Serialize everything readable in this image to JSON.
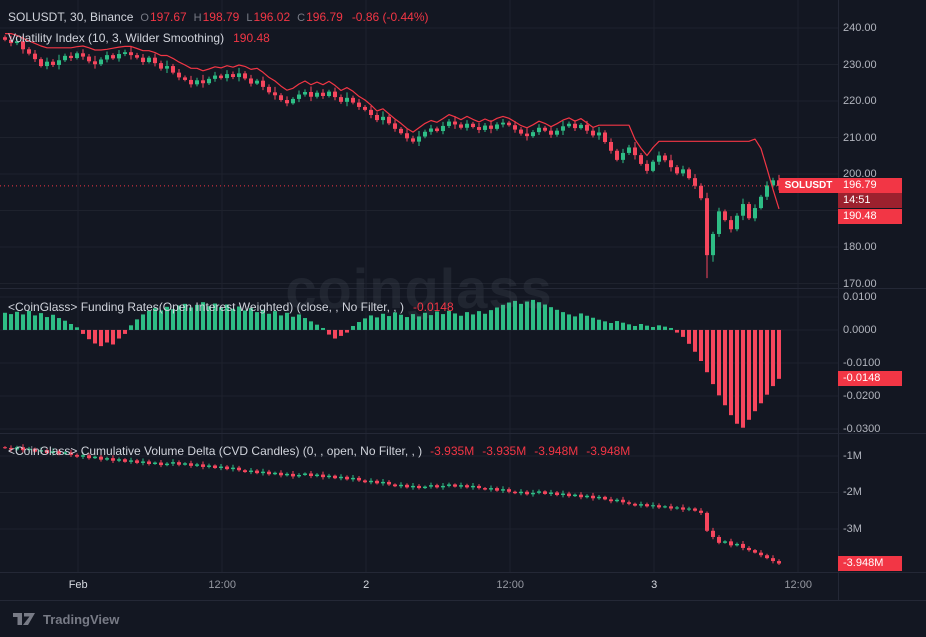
{
  "window": {
    "watermark": "coinglass"
  },
  "colors": {
    "bg": "#131722",
    "grid": "#1e222d",
    "up": "#2ebd85",
    "down": "#f6465d",
    "accent_red": "#f23645",
    "scale_text": "#b2b5be",
    "legend_text": "#d1d4dc",
    "muted": "#787b86"
  },
  "legend": {
    "p1_title": "SOLUSDT, 30, Binance",
    "p1_ohlc": [
      {
        "k": "O",
        "v": "197.67"
      },
      {
        "k": "H",
        "v": "198.79"
      },
      {
        "k": "L",
        "v": "196.02"
      },
      {
        "k": "C",
        "v": "196.79"
      }
    ],
    "p1_change": "-0.86 (-0.44%)",
    "p1_ind_name": "Volatility Index (10, 3, Wilder Smoothing)",
    "p1_ind_value": "190.48",
    "p2_name": "<CoinGlass> Funding Rates(Open Interest Weighted) (close, , No Filter, , )",
    "p2_value": "-0.0148",
    "p3_name": "<CoinGlass> Cumulative Volume Delta (CVD Candles) (0, , open, No Filter, , )",
    "p3_values": [
      "-3.935M",
      "-3.935M",
      "-3.948M",
      "-3.948M"
    ]
  },
  "badges": {
    "symbol": "SOLUSDT",
    "price": "196.79",
    "countdown": "14:51",
    "volatility": "190.48",
    "funding": "-0.0148",
    "cvd": "-3.948M"
  },
  "toolbar": {
    "brand": "TradingView"
  },
  "time_axis": {
    "ticks": [
      {
        "label": "Feb",
        "index": 12.2,
        "strong": true
      },
      {
        "label": "12:00",
        "index": 36.2
      },
      {
        "label": "2",
        "index": 60.2,
        "strong": true
      },
      {
        "label": "12:00",
        "index": 84.2
      },
      {
        "label": "3",
        "index": 108.2,
        "strong": true
      },
      {
        "label": "12:00",
        "index": 132.2
      }
    ]
  },
  "chart_data": [
    {
      "type": "candlestick",
      "title": "SOLUSDT, 30, Binance",
      "symbol": "SOLUSDT",
      "interval": "30",
      "exchange": "Binance",
      "ohlc_display": {
        "open": "197.67",
        "high": "198.79",
        "low": "196.02",
        "close": "196.79",
        "change": "-0.86 (-0.44%)"
      },
      "last_price": 196.79,
      "countdown": "14:51",
      "ylim": [
        168.8,
        247.7
      ],
      "y_ticks": [
        {
          "v": 240,
          "label": "240.00"
        },
        {
          "v": 230,
          "label": "230.00"
        },
        {
          "v": 220,
          "label": "220.00"
        },
        {
          "v": 210,
          "label": "210.00"
        },
        {
          "v": 200,
          "label": "200.00"
        },
        {
          "v": 190,
          "label": ""
        },
        {
          "v": 180,
          "label": "180.00"
        },
        {
          "v": 170,
          "label": "170.00"
        }
      ],
      "first_open": 237.5,
      "closes": [
        236.8,
        235.9,
        236.4,
        234.2,
        233.0,
        231.5,
        229.6,
        230.8,
        229.9,
        231.2,
        232.4,
        231.8,
        233.1,
        232.2,
        230.9,
        230.1,
        231.4,
        232.6,
        231.7,
        232.9,
        233.4,
        232.6,
        231.9,
        230.7,
        231.9,
        230.4,
        228.9,
        229.6,
        227.8,
        226.5,
        225.8,
        224.6,
        225.7,
        224.9,
        226.1,
        227.0,
        226.3,
        227.4,
        226.6,
        227.6,
        226.2,
        224.8,
        225.6,
        223.9,
        222.4,
        221.6,
        220.3,
        219.4,
        220.6,
        221.8,
        222.5,
        221.2,
        222.3,
        221.4,
        222.6,
        221.1,
        219.8,
        220.9,
        219.6,
        218.4,
        217.6,
        216.2,
        214.8,
        215.7,
        213.9,
        212.4,
        211.2,
        209.8,
        208.9,
        210.3,
        211.6,
        212.5,
        211.8,
        213.2,
        214.4,
        213.6,
        212.7,
        213.8,
        212.9,
        212.1,
        213.3,
        212.4,
        213.6,
        214.1,
        213.4,
        212.2,
        211.1,
        210.4,
        211.5,
        212.7,
        211.9,
        210.8,
        211.9,
        213.1,
        213.8,
        212.6,
        213.5,
        211.9,
        210.6,
        211.4,
        208.8,
        206.4,
        203.9,
        205.8,
        207.3,
        205.2,
        202.8,
        200.9,
        203.4,
        205.1,
        203.8,
        201.9,
        200.2,
        201.3,
        198.9,
        196.8,
        193.4,
        177.8,
        183.6,
        189.8,
        187.4,
        184.9,
        188.6,
        191.8,
        187.9,
        190.7,
        193.8,
        196.9,
        198.3,
        196.79
      ],
      "wick_pattern": [
        0.5,
        1.1,
        0.7,
        1.5,
        0.6,
        1.0
      ],
      "low_overrides": {
        "117": 171.5,
        "118": 176.0
      },
      "overlay": {
        "name": "Volatility Index (10, 3, Wilder Smoothing)",
        "value": 190.48,
        "color": "#f23645",
        "values": [
          238.5,
          238.5,
          238.0,
          237.2,
          236.5,
          235.8,
          235.1,
          234.6,
          234.6,
          234.6,
          234.6,
          234.6,
          234.9,
          235.1,
          234.6,
          234.0,
          234.0,
          234.2,
          234.5,
          234.8,
          235.0,
          235.0,
          234.4,
          233.8,
          233.8,
          233.3,
          232.5,
          232.5,
          231.7,
          230.7,
          229.9,
          229.0,
          229.0,
          228.3,
          228.8,
          229.4,
          229.1,
          229.7,
          229.3,
          229.9,
          229.5,
          228.7,
          229.0,
          227.9,
          226.5,
          225.5,
          224.1,
          223.0,
          223.5,
          224.7,
          225.5,
          224.5,
          225.2,
          224.5,
          225.4,
          224.3,
          222.9,
          223.7,
          222.7,
          221.3,
          220.3,
          218.9,
          217.3,
          217.9,
          216.5,
          215.1,
          213.9,
          212.5,
          211.5,
          212.7,
          213.9,
          214.7,
          214.2,
          215.2,
          216.3,
          215.7,
          214.9,
          215.8,
          215.0,
          214.3,
          215.1,
          214.4,
          215.3,
          215.8,
          215.3,
          214.3,
          213.3,
          212.7,
          213.5,
          214.5,
          213.9,
          213.0,
          213.8,
          214.8,
          215.4,
          214.5,
          215.2,
          214.0,
          212.8,
          213.4,
          213.4,
          213.4,
          213.4,
          213.4,
          213.4,
          209.5,
          207.1,
          205.1,
          207.3,
          209.0,
          209.0,
          209.0,
          209.0,
          209.0,
          209.0,
          209.0,
          209.0,
          209.0,
          209.0,
          209.0,
          209.0,
          209.0,
          209.0,
          209.0,
          209.0,
          209.6,
          207.0,
          201.5,
          195.8,
          190.48
        ]
      }
    },
    {
      "type": "bar",
      "name": "<CoinGlass> Funding Rates(Open Interest Weighted) (close, , No Filter, , )",
      "value": -0.0148,
      "value_display": "-0.0148",
      "ylim": [
        -0.0312,
        0.0127
      ],
      "y_ticks": [
        {
          "v": 0.01,
          "label": "0.0100"
        },
        {
          "v": 0.0,
          "label": "0.0000"
        },
        {
          "v": -0.01,
          "label": "-0.0100"
        },
        {
          "v": -0.02,
          "label": "-0.0200"
        },
        {
          "v": -0.03,
          "label": "-0.0300"
        }
      ],
      "values": [
        0.0052,
        0.0048,
        0.0055,
        0.0047,
        0.0058,
        0.0044,
        0.0051,
        0.0039,
        0.0046,
        0.0036,
        0.0028,
        0.0018,
        0.0008,
        -0.0012,
        -0.0028,
        -0.0041,
        -0.0049,
        -0.0038,
        -0.0044,
        -0.0026,
        -0.0012,
        0.0014,
        0.0032,
        0.0047,
        0.0058,
        0.0066,
        0.0059,
        0.007,
        0.0063,
        0.0074,
        0.0079,
        0.0068,
        0.0076,
        0.0084,
        0.0072,
        0.008,
        0.0069,
        0.0077,
        0.0064,
        0.0071,
        0.0059,
        0.0066,
        0.0054,
        0.0061,
        0.0049,
        0.0057,
        0.0044,
        0.0052,
        0.004,
        0.0047,
        0.0036,
        0.0026,
        0.0016,
        0.0006,
        -0.0014,
        -0.0026,
        -0.0018,
        -0.0008,
        0.0012,
        0.0024,
        0.0035,
        0.0044,
        0.0038,
        0.0049,
        0.0042,
        0.0053,
        0.0046,
        0.0039,
        0.0048,
        0.0041,
        0.0052,
        0.0045,
        0.0056,
        0.0048,
        0.0058,
        0.005,
        0.0043,
        0.0054,
        0.0047,
        0.0057,
        0.0049,
        0.006,
        0.0068,
        0.0076,
        0.0083,
        0.0088,
        0.0079,
        0.0086,
        0.0091,
        0.0084,
        0.0077,
        0.0069,
        0.0061,
        0.0054,
        0.0047,
        0.0041,
        0.005,
        0.0043,
        0.0037,
        0.0031,
        0.0026,
        0.0021,
        0.0027,
        0.0022,
        0.0017,
        0.0012,
        0.0018,
        0.0013,
        0.0009,
        0.0014,
        0.001,
        0.0006,
        -0.0008,
        -0.0021,
        -0.0042,
        -0.0066,
        -0.0094,
        -0.0128,
        -0.0164,
        -0.0198,
        -0.0228,
        -0.0258,
        -0.0284,
        -0.0296,
        -0.0272,
        -0.0246,
        -0.0222,
        -0.0196,
        -0.017,
        -0.0148
      ]
    },
    {
      "type": "candlestick",
      "name": "<CoinGlass> Cumulative Volume Delta (CVD Candles) (0, , open, No Filter, , )",
      "value": -3.948,
      "value_display": "-3.948M",
      "ohlc_display": [
        "-3.935M",
        "-3.935M",
        "-3.948M",
        "-3.948M"
      ],
      "ylim": [
        -4.18,
        -0.37
      ],
      "y_ticks": [
        {
          "v": -1,
          "label": "-1M"
        },
        {
          "v": -2,
          "label": "-2M"
        },
        {
          "v": -3,
          "label": "-3M"
        }
      ],
      "first_open": -0.76,
      "closes": [
        -0.78,
        -0.82,
        -0.76,
        -0.84,
        -0.8,
        -0.88,
        -0.84,
        -0.92,
        -0.87,
        -0.94,
        -0.9,
        -0.97,
        -1.02,
        -0.98,
        -1.06,
        -1.02,
        -1.1,
        -1.06,
        -1.13,
        -1.09,
        -1.16,
        -1.12,
        -1.19,
        -1.15,
        -1.22,
        -1.18,
        -1.25,
        -1.21,
        -1.17,
        -1.24,
        -1.2,
        -1.27,
        -1.23,
        -1.3,
        -1.26,
        -1.33,
        -1.29,
        -1.36,
        -1.32,
        -1.39,
        -1.44,
        -1.4,
        -1.47,
        -1.43,
        -1.5,
        -1.46,
        -1.53,
        -1.49,
        -1.56,
        -1.52,
        -1.48,
        -1.55,
        -1.51,
        -1.58,
        -1.54,
        -1.61,
        -1.57,
        -1.64,
        -1.6,
        -1.67,
        -1.72,
        -1.68,
        -1.75,
        -1.71,
        -1.78,
        -1.83,
        -1.79,
        -1.86,
        -1.82,
        -1.88,
        -1.84,
        -1.8,
        -1.86,
        -1.82,
        -1.78,
        -1.84,
        -1.8,
        -1.86,
        -1.82,
        -1.88,
        -1.92,
        -1.88,
        -1.95,
        -1.91,
        -1.98,
        -2.02,
        -1.98,
        -2.05,
        -2.01,
        -1.97,
        -2.04,
        -2.0,
        -2.07,
        -2.03,
        -2.1,
        -2.06,
        -2.13,
        -2.09,
        -2.16,
        -2.12,
        -2.19,
        -2.24,
        -2.2,
        -2.27,
        -2.31,
        -2.36,
        -2.32,
        -2.38,
        -2.35,
        -2.41,
        -2.38,
        -2.44,
        -2.41,
        -2.47,
        -2.44,
        -2.5,
        -2.56,
        -3.05,
        -3.22,
        -3.38,
        -3.34,
        -3.45,
        -3.41,
        -3.52,
        -3.58,
        -3.65,
        -3.72,
        -3.8,
        -3.88,
        -3.948
      ],
      "wick_pattern": [
        0.03,
        0.07,
        0.04,
        0.08,
        0.05
      ]
    }
  ]
}
